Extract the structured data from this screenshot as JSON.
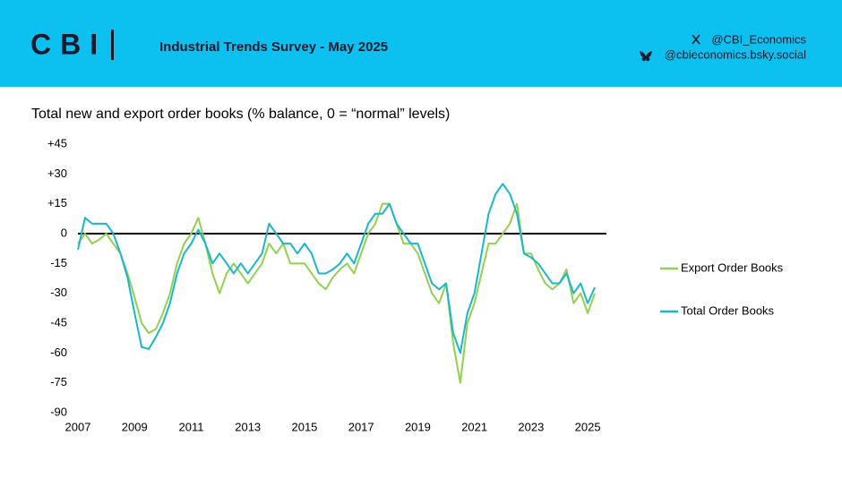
{
  "header": {
    "logo": "CBI",
    "title": "Industrial Trends Survey - May 2025",
    "handles": [
      "@CBI_Economics",
      "@cbieconomics.bsky.social"
    ]
  },
  "chart_data": {
    "type": "line",
    "title": "Total new and export order books (% balance, 0 = “normal” levels)",
    "x": [
      2007,
      2007.25,
      2007.5,
      2007.75,
      2008,
      2008.25,
      2008.5,
      2008.75,
      2009,
      2009.25,
      2009.5,
      2009.75,
      2010,
      2010.25,
      2010.5,
      2010.75,
      2011,
      2011.25,
      2011.5,
      2011.75,
      2012,
      2012.25,
      2012.5,
      2012.75,
      2013,
      2013.25,
      2013.5,
      2013.75,
      2014,
      2014.25,
      2014.5,
      2014.75,
      2015,
      2015.25,
      2015.5,
      2015.75,
      2016,
      2016.25,
      2016.5,
      2016.75,
      2017,
      2017.25,
      2017.5,
      2017.75,
      2018,
      2018.25,
      2018.5,
      2018.75,
      2019,
      2019.25,
      2019.5,
      2019.75,
      2020,
      2020.25,
      2020.5,
      2020.75,
      2021,
      2021.25,
      2021.5,
      2021.75,
      2022,
      2022.25,
      2022.5,
      2022.75,
      2023,
      2023.25,
      2023.5,
      2023.75,
      2024,
      2024.25,
      2024.5,
      2024.75,
      2025,
      2025.25
    ],
    "series": [
      {
        "name": "Export Order Books",
        "color": "#92d050",
        "values": [
          -5,
          0,
          -5,
          -3,
          0,
          -5,
          -10,
          -20,
          -32,
          -45,
          -50,
          -48,
          -40,
          -30,
          -15,
          -5,
          0,
          8,
          -5,
          -20,
          -30,
          -20,
          -15,
          -20,
          -25,
          -20,
          -15,
          -5,
          -10,
          -5,
          -15,
          -15,
          -15,
          -20,
          -25,
          -28,
          -22,
          -18,
          -15,
          -20,
          -10,
          0,
          5,
          15,
          15,
          5,
          -5,
          -5,
          -10,
          -20,
          -30,
          -35,
          -25,
          -55,
          -75,
          -45,
          -35,
          -20,
          -5,
          -5,
          0,
          5,
          15,
          -10,
          -10,
          -18,
          -25,
          -28,
          -25,
          -18,
          -35,
          -30,
          -40,
          -30
        ]
      },
      {
        "name": "Total Order Books",
        "color": "#17b8cc",
        "values": [
          -8,
          8,
          5,
          5,
          5,
          0,
          -10,
          -22,
          -40,
          -57,
          -58,
          -52,
          -45,
          -35,
          -20,
          -10,
          -5,
          2,
          -5,
          -15,
          -10,
          -15,
          -20,
          -15,
          -20,
          -15,
          -10,
          5,
          0,
          -5,
          -5,
          -10,
          -5,
          -10,
          -20,
          -20,
          -18,
          -15,
          -10,
          -15,
          -5,
          5,
          10,
          10,
          15,
          5,
          0,
          -5,
          -5,
          -15,
          -25,
          -28,
          -25,
          -50,
          -60,
          -40,
          -30,
          -10,
          10,
          20,
          25,
          20,
          10,
          -10,
          -12,
          -15,
          -20,
          -25,
          -25,
          -20,
          -30,
          -25,
          -35,
          -27
        ]
      }
    ],
    "xlim": [
      2007,
      2025.66
    ],
    "xticks": [
      2007,
      2009,
      2011,
      2013,
      2015,
      2017,
      2019,
      2021,
      2023,
      2025
    ],
    "ylim": [
      -90,
      45
    ],
    "yticks": [
      {
        "value": 45,
        "label": "+45"
      },
      {
        "value": 30,
        "label": "+30"
      },
      {
        "value": 15,
        "label": "+15"
      },
      0,
      -15,
      -30,
      -45,
      -60,
      -75,
      -90
    ],
    "grid": false,
    "legend": "right"
  }
}
